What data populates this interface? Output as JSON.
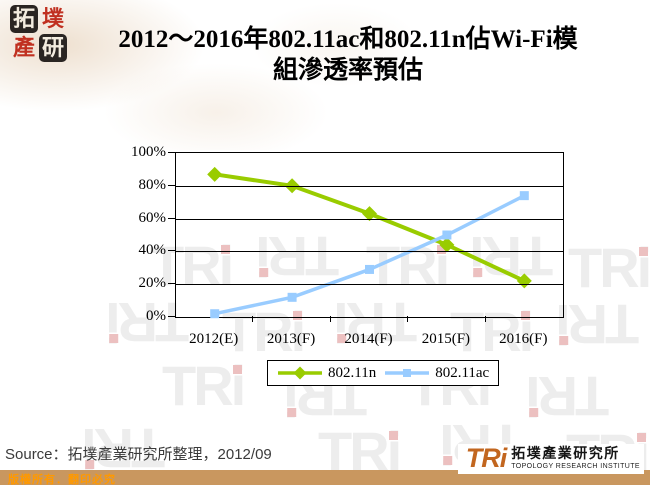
{
  "header": {
    "seal_chars": [
      "拓",
      "墣",
      "產",
      "研"
    ],
    "title_line1": "2012～2016年802.11ac和802.11n佔Wi-Fi模",
    "title_line2": "組滲透率預估"
  },
  "chart_data": {
    "type": "line",
    "title": "2012～2016年802.11ac和802.11n佔Wi-Fi模組滲透率預估",
    "categories": [
      "2012(E)",
      "2013(F)",
      "2014(F)",
      "2015(F)",
      "2016(F)"
    ],
    "series": [
      {
        "name": "802.11n",
        "marker": "diamond",
        "color": "#99cc00",
        "values": [
          87,
          80,
          63,
          44,
          22
        ]
      },
      {
        "name": "802.11ac",
        "marker": "square",
        "color": "#99ccff",
        "values": [
          2,
          12,
          29,
          50,
          74
        ]
      }
    ],
    "ylim": [
      0,
      100
    ],
    "yticks": [
      0,
      20,
      40,
      60,
      80,
      100
    ],
    "ytick_labels": [
      "0%",
      "20%",
      "40%",
      "60%",
      "80%",
      "100%"
    ],
    "grid": true,
    "legend_position": "bottom-center"
  },
  "watermark": {
    "text": "TRi"
  },
  "footer": {
    "source": "Source：拓墣產業研究所整理，2012/09",
    "copyright": "版權所有．翻印必究",
    "logo_text": "TRi",
    "logo_cn": "拓墣產業研究所",
    "logo_en": "TOPOLOGY RESEARCH INSTITUTE"
  },
  "colors": {
    "series_n_green": "#99cc00",
    "series_ac_blue": "#99ccff",
    "footer_bar": "#c9975f",
    "copyright_text": "#ff9900",
    "logo_orange": "#c2661f",
    "seal_red": "#c03020",
    "seal_black": "#2a2522",
    "watermark_gray": "#ededed"
  }
}
